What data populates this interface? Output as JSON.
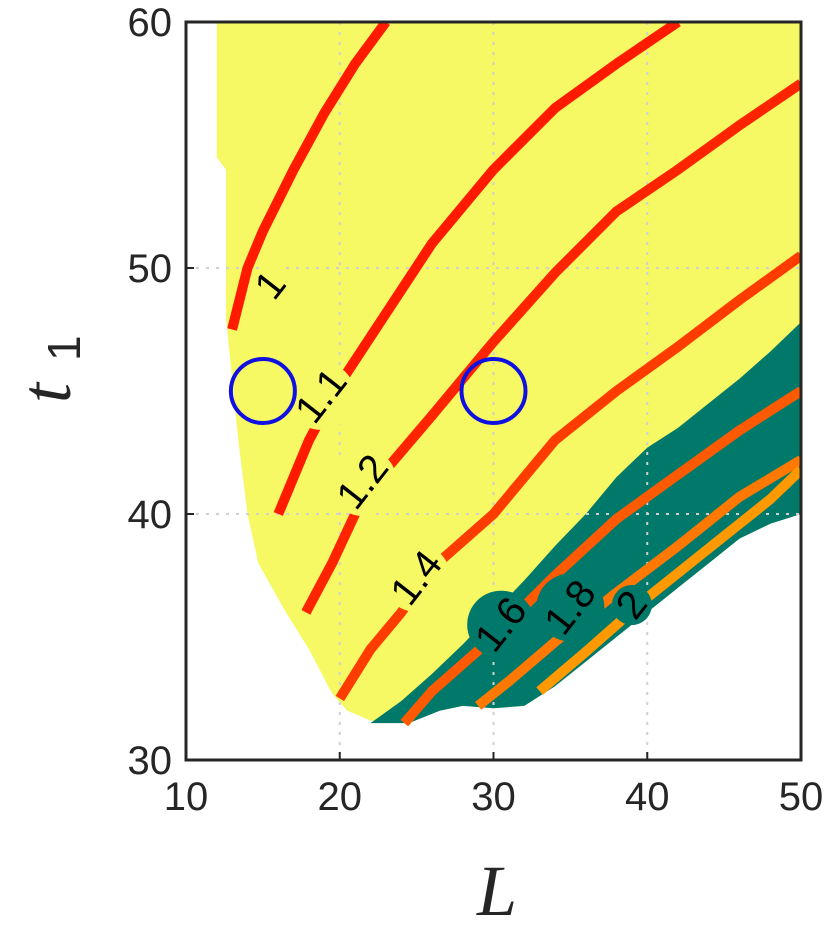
{
  "chart_data": {
    "type": "contour",
    "xlabel": "L",
    "ylabel": "t",
    "ylabel_subscript": "1",
    "xlim": [
      10,
      50
    ],
    "ylim": [
      30,
      60
    ],
    "xticks": [
      "10",
      "20",
      "30",
      "40",
      "50"
    ],
    "yticks": [
      "30",
      "40",
      "50",
      "60"
    ],
    "grid": true,
    "colors": {
      "feasible_region": "#f6f963",
      "high_region": "#00796a",
      "axis": "#262626",
      "grid": "#d0d0d0",
      "marker": "#1010e0"
    },
    "feasible_boundary": [
      [
        12.0,
        60.0
      ],
      [
        12.0,
        54.5
      ],
      [
        12.6,
        54.0
      ],
      [
        12.6,
        48.0
      ],
      [
        13.4,
        43.0
      ],
      [
        14.0,
        40.0
      ],
      [
        14.7,
        38.0
      ],
      [
        16.5,
        36.0
      ],
      [
        18.0,
        34.5
      ],
      [
        19.5,
        32.7
      ],
      [
        20.5,
        32.0
      ],
      [
        22.0,
        31.6
      ],
      [
        24.0,
        31.5
      ],
      [
        26.5,
        32.0
      ],
      [
        28.0,
        32.2
      ],
      [
        30.0,
        32.1
      ],
      [
        32.0,
        32.2
      ],
      [
        34.0,
        33.0
      ],
      [
        36.0,
        34.0
      ],
      [
        38.0,
        35.0
      ],
      [
        40.0,
        36.0
      ],
      [
        42.0,
        37.0
      ],
      [
        44.0,
        38.0
      ],
      [
        46.0,
        39.0
      ],
      [
        48.0,
        39.6
      ],
      [
        50.0,
        40.0
      ],
      [
        50.0,
        60.0
      ]
    ],
    "high_region": [
      [
        22.0,
        31.5
      ],
      [
        24.5,
        31.5
      ],
      [
        26.5,
        32.0
      ],
      [
        28.0,
        32.2
      ],
      [
        30.0,
        32.1
      ],
      [
        32.0,
        32.2
      ],
      [
        34.0,
        33.0
      ],
      [
        36.0,
        34.0
      ],
      [
        38.0,
        35.0
      ],
      [
        40.0,
        36.0
      ],
      [
        42.0,
        37.0
      ],
      [
        44.0,
        38.0
      ],
      [
        46.0,
        39.0
      ],
      [
        48.0,
        39.6
      ],
      [
        50.0,
        40.0
      ],
      [
        50.0,
        47.8
      ],
      [
        48.0,
        46.6
      ],
      [
        46.0,
        45.5
      ],
      [
        44.0,
        44.5
      ],
      [
        42.0,
        43.5
      ],
      [
        40.0,
        42.7
      ],
      [
        38.0,
        41.5
      ],
      [
        36.0,
        40.0
      ],
      [
        34.0,
        38.7
      ],
      [
        32.0,
        37.3
      ],
      [
        30.0,
        36.0
      ],
      [
        28.0,
        34.7
      ],
      [
        26.0,
        33.5
      ],
      [
        24.0,
        32.4
      ]
    ],
    "contours": [
      {
        "level": 1.0,
        "label": "1",
        "color": "#ff1a00",
        "points": [
          [
            13.0,
            47.5
          ],
          [
            14.0,
            50.0
          ],
          [
            15.0,
            51.5
          ],
          [
            17.0,
            54.0
          ],
          [
            19.0,
            56.3
          ],
          [
            21.0,
            58.3
          ],
          [
            23.0,
            60.0
          ]
        ]
      },
      {
        "level": 1.1,
        "label": "1.1",
        "color": "#ff1a00",
        "points": [
          [
            16.0,
            40.0
          ],
          [
            18.0,
            43.0
          ],
          [
            20.0,
            45.3
          ],
          [
            22.0,
            47.2
          ],
          [
            26.0,
            51.0
          ],
          [
            30.0,
            54.0
          ],
          [
            34.0,
            56.5
          ],
          [
            38.0,
            58.3
          ],
          [
            42.0,
            60.0
          ]
        ]
      },
      {
        "level": 1.2,
        "label": "1.2",
        "color": "#ff2400",
        "points": [
          [
            17.8,
            36.0
          ],
          [
            19.5,
            38.0
          ],
          [
            21.0,
            40.0
          ],
          [
            23.0,
            41.8
          ],
          [
            26.0,
            44.0
          ],
          [
            30.0,
            47.0
          ],
          [
            34.0,
            49.8
          ],
          [
            38.0,
            52.3
          ],
          [
            42.0,
            54.0
          ],
          [
            46.0,
            55.8
          ],
          [
            50.0,
            57.5
          ]
        ]
      },
      {
        "level": 1.4,
        "label": "1.4",
        "color": "#ff3c00",
        "points": [
          [
            20.0,
            32.5
          ],
          [
            22.0,
            34.5
          ],
          [
            24.0,
            36.0
          ],
          [
            26.0,
            37.8
          ],
          [
            30.0,
            40.0
          ],
          [
            34.0,
            43.0
          ],
          [
            38.0,
            45.0
          ],
          [
            42.0,
            46.8
          ],
          [
            46.0,
            48.7
          ],
          [
            50.0,
            50.5
          ]
        ]
      },
      {
        "level": 1.6,
        "label": "1.6",
        "color": "#ff5a00",
        "points": [
          [
            24.2,
            31.5
          ],
          [
            26.0,
            32.8
          ],
          [
            30.0,
            35.0
          ],
          [
            34.0,
            37.5
          ],
          [
            38.0,
            39.8
          ],
          [
            42.0,
            41.6
          ],
          [
            46.0,
            43.4
          ],
          [
            50.0,
            45.0
          ]
        ]
      },
      {
        "level": 1.8,
        "label": "1.8",
        "color": "#ff7800",
        "points": [
          [
            29.0,
            32.2
          ],
          [
            31.0,
            33.2
          ],
          [
            34.0,
            34.8
          ],
          [
            38.0,
            36.8
          ],
          [
            42.0,
            38.7
          ],
          [
            46.0,
            40.7
          ],
          [
            50.0,
            42.2
          ]
        ]
      },
      {
        "level": 2.0,
        "label": "2",
        "color": "#ff9900",
        "points": [
          [
            33.0,
            32.8
          ],
          [
            36.0,
            34.4
          ],
          [
            40.0,
            36.6
          ],
          [
            44.0,
            38.6
          ],
          [
            48.0,
            40.6
          ],
          [
            50.0,
            41.8
          ]
        ]
      }
    ],
    "markers": [
      {
        "x": 15.0,
        "y": 45.0,
        "shape": "circle"
      },
      {
        "x": 30.0,
        "y": 45.0,
        "shape": "circle"
      }
    ]
  }
}
